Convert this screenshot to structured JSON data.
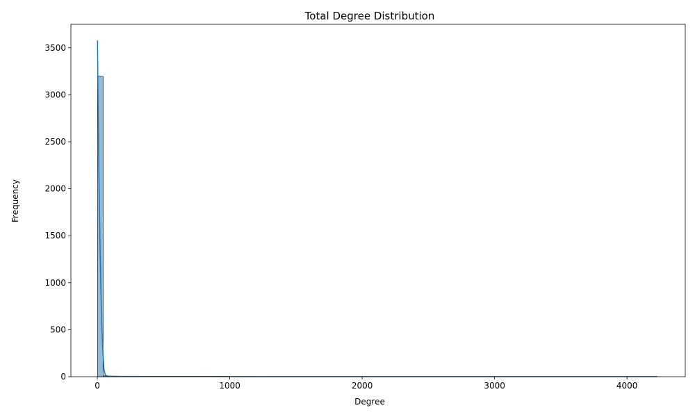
{
  "chart_data": {
    "type": "bar",
    "title": "Total Degree Distribution",
    "xlabel": "Degree",
    "ylabel": "Frequency",
    "xlim": [
      -200,
      4440
    ],
    "ylim": [
      0,
      3750
    ],
    "xticks": [
      0,
      1000,
      2000,
      3000,
      4000
    ],
    "yticks": [
      0,
      500,
      1000,
      1500,
      2000,
      2500,
      3000,
      3500
    ],
    "grid": false,
    "legend": "none",
    "bar_color": "#1f77b4",
    "bar_alpha": 0.5,
    "line_color": "#1f77b4",
    "histogram": {
      "bin_width": 42.3,
      "bins": [
        {
          "x0": 1,
          "x1": 43.3,
          "count": 3197
        },
        {
          "x0": 43.3,
          "x1": 85.6,
          "count": 8
        },
        {
          "x0": 85.6,
          "x1": 127.9,
          "count": 4
        },
        {
          "x0": 127.9,
          "x1": 170.2,
          "count": 2
        },
        {
          "x0": 170.2,
          "x1": 212.5,
          "count": 1
        },
        {
          "x0": 212.5,
          "x1": 254.8,
          "count": 1
        },
        {
          "x0": 254.8,
          "x1": 297.1,
          "count": 1
        },
        {
          "x0": 592.5,
          "x1": 634.8,
          "count": 1
        },
        {
          "x0": 4187,
          "x1": 4229.3,
          "count": 1
        }
      ]
    },
    "kde": {
      "x": [
        1,
        10,
        20,
        30,
        40,
        50,
        60,
        80,
        120,
        200,
        400,
        800,
        1500,
        2500,
        3500,
        4229
      ],
      "y": [
        3580,
        2300,
        1400,
        700,
        300,
        80,
        15,
        6,
        5,
        3,
        2,
        2,
        1,
        1,
        1,
        1
      ]
    }
  }
}
